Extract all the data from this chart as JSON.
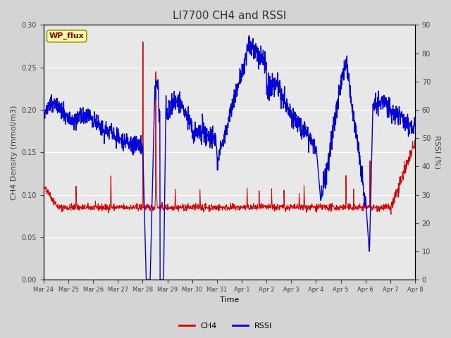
{
  "title": "LI7700 CH4 and RSSI",
  "xlabel": "Time",
  "ylabel_left": "CH4 Density (mmol/m3)",
  "ylabel_right": "RSSI (%)",
  "left_ylim": [
    0.0,
    0.3
  ],
  "right_ylim": [
    0,
    90
  ],
  "ch4_color": "#dd0000",
  "rssi_color": "#0000dd",
  "fig_bg_color": "#d4d4d4",
  "plot_bg_color": "#e8e8e8",
  "annotation_text": "WP_flux",
  "annotation_bg": "#ffffaa",
  "annotation_border": "#999900",
  "x_tick_labels": [
    "Mar 24",
    "Mar 25",
    "Mar 26",
    "Mar 27",
    "Mar 28",
    "Mar 29",
    "Mar 30",
    "Mar 31",
    "Apr 1",
    "Apr 2",
    "Apr 3",
    "Apr 4",
    "Apr 5",
    "Apr 6",
    "Apr 7",
    "Apr 8"
  ],
  "title_fontsize": 11,
  "label_fontsize": 8,
  "tick_fontsize": 7,
  "legend_fontsize": 8
}
